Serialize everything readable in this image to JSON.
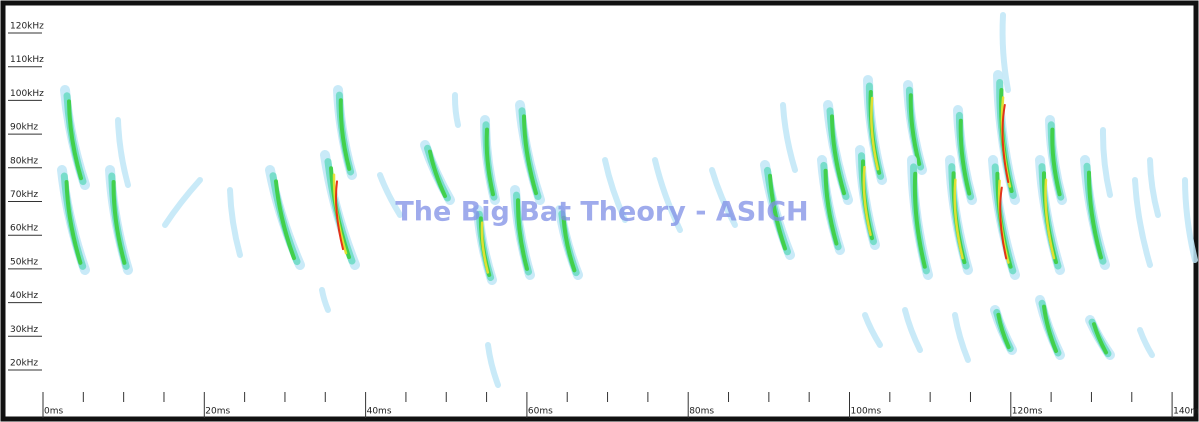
{
  "watermark": "The Big Bat Theory - ASICH",
  "frequency_axis": {
    "labels": [
      "120kHz",
      "110kHz",
      "100kHz",
      "90kHz",
      "80kHz",
      "70kHz",
      "60kHz",
      "50kHz",
      "40kHz",
      "30kHz",
      "20kHz"
    ]
  },
  "time_axis": {
    "labels": [
      "0ms",
      "20ms",
      "40ms",
      "60ms",
      "80ms",
      "100ms",
      "120ms",
      "140ms"
    ]
  }
}
